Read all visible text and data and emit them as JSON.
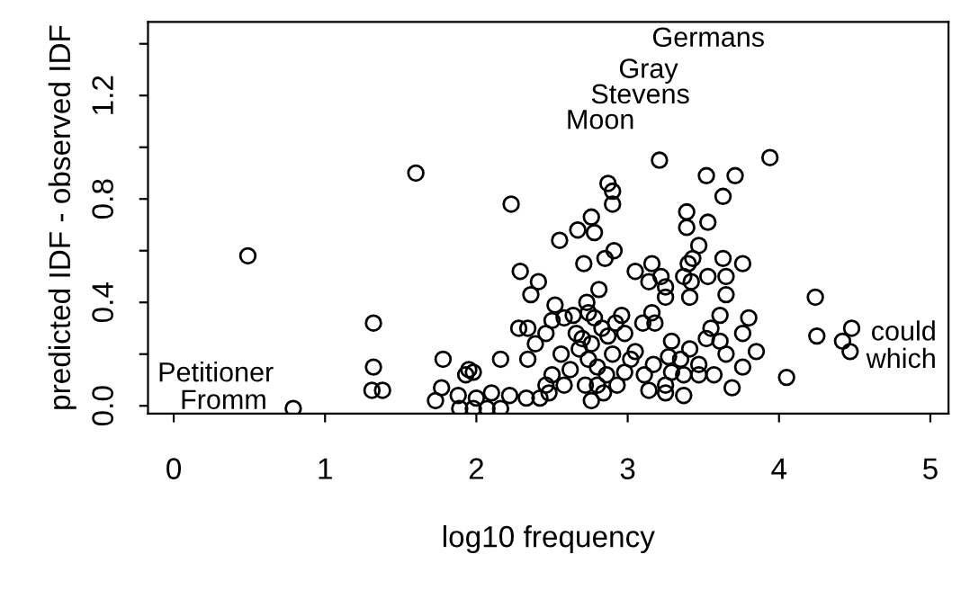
{
  "chart_data": {
    "type": "scatter",
    "xlabel": "log10 frequency",
    "ylabel": "predicted IDF - observed IDF",
    "xlim": [
      -0.17,
      5.12
    ],
    "ylim": [
      -0.03,
      1.485
    ],
    "xticks": [
      0,
      1,
      2,
      3,
      4,
      5
    ],
    "yticks": [
      {
        "value": 0.0,
        "label": "0.0"
      },
      {
        "value": 0.2,
        "label": null
      },
      {
        "value": 0.4,
        "label": "0.4"
      },
      {
        "value": 0.6,
        "label": null
      },
      {
        "value": 0.8,
        "label": "0.8"
      },
      {
        "value": 1.0,
        "label": null
      },
      {
        "value": 1.2,
        "label": "1.2"
      },
      {
        "value": 1.4,
        "label": null
      }
    ],
    "grid": false,
    "legend": false,
    "marker": "circle",
    "annotations": [
      "Germans",
      "Gray",
      "Stevens",
      "Moon",
      "Petitioner",
      "Fromm",
      "could",
      "which"
    ],
    "series": [
      {
        "color": "#000000",
        "x": [
          0.49,
          1.6,
          0.79,
          1.32,
          1.32,
          1.31,
          1.38,
          1.78,
          1.77,
          1.73,
          1.88,
          1.89,
          1.95,
          1.93,
          2.0,
          1.98,
          3.21,
          3.94,
          3.52,
          3.71,
          3.63,
          2.23,
          2.87,
          2.9,
          2.9,
          2.76,
          2.67,
          2.78,
          2.55,
          2.91,
          2.85,
          2.71,
          3.39,
          3.39,
          3.53,
          3.47,
          3.43,
          3.4,
          3.63,
          3.76,
          3.37,
          3.53,
          3.65,
          3.42,
          3.65,
          3.41,
          3.16,
          3.05,
          3.14,
          3.22,
          3.25,
          3.25,
          2.29,
          2.41,
          2.36,
          2.81,
          2.73,
          2.52,
          2.58,
          3.16,
          3.18,
          4.24,
          4.25,
          4.48,
          4.42,
          4.47,
          4.05,
          3.61,
          3.8,
          3.76,
          3.85,
          3.55,
          3.52,
          3.61,
          3.65,
          3.76,
          3.69,
          3.57,
          3.47,
          3.41,
          3.29,
          3.27,
          3.29,
          3.25,
          3.37,
          3.11,
          3.02,
          3.05,
          2.96,
          2.92,
          2.98,
          2.87,
          2.83,
          2.76,
          2.7,
          2.68,
          2.74,
          2.8,
          2.9,
          2.86,
          2.93,
          2.84,
          2.76,
          2.72,
          2.62,
          2.56,
          2.58,
          2.5,
          2.48,
          2.42,
          2.34,
          2.34,
          2.28,
          2.39,
          2.46,
          2.5,
          2.16,
          2.33,
          2.22,
          2.1,
          2.16,
          2.07,
          1.98,
          2.78,
          2.64,
          2.74,
          2.98,
          3.1,
          3.47,
          3.37,
          3.17,
          3.35,
          2.66,
          2.46,
          2.8,
          3.14,
          3.25
        ],
        "values": [
          0.58,
          0.9,
          -0.01,
          0.32,
          0.15,
          0.06,
          0.06,
          0.18,
          0.07,
          0.02,
          0.04,
          -0.01,
          0.14,
          0.12,
          0.03,
          -0.01,
          0.95,
          0.96,
          0.89,
          0.89,
          0.81,
          0.78,
          0.86,
          0.83,
          0.78,
          0.73,
          0.68,
          0.67,
          0.64,
          0.6,
          0.57,
          0.55,
          0.75,
          0.69,
          0.71,
          0.62,
          0.57,
          0.55,
          0.57,
          0.55,
          0.5,
          0.5,
          0.5,
          0.48,
          0.43,
          0.42,
          0.55,
          0.52,
          0.48,
          0.5,
          0.46,
          0.42,
          0.52,
          0.48,
          0.43,
          0.45,
          0.4,
          0.39,
          0.34,
          0.36,
          0.32,
          0.42,
          0.27,
          0.3,
          0.25,
          0.21,
          0.11,
          0.35,
          0.34,
          0.28,
          0.21,
          0.3,
          0.26,
          0.25,
          0.2,
          0.15,
          0.07,
          0.12,
          0.16,
          0.22,
          0.25,
          0.19,
          0.13,
          0.08,
          0.04,
          0.12,
          0.18,
          0.21,
          0.35,
          0.32,
          0.28,
          0.27,
          0.3,
          0.24,
          0.26,
          0.22,
          0.18,
          0.15,
          0.2,
          0.12,
          0.08,
          0.05,
          0.02,
          0.08,
          0.14,
          0.2,
          0.08,
          0.12,
          0.05,
          0.03,
          0.18,
          0.3,
          0.3,
          0.24,
          0.28,
          0.33,
          0.18,
          0.03,
          0.04,
          0.05,
          -0.01,
          -0.01,
          0.13,
          0.34,
          0.35,
          0.36,
          0.13,
          0.32,
          0.12,
          0.12,
          0.16,
          0.18,
          0.28,
          0.08,
          0.08,
          0.06,
          0.05
        ]
      }
    ]
  }
}
